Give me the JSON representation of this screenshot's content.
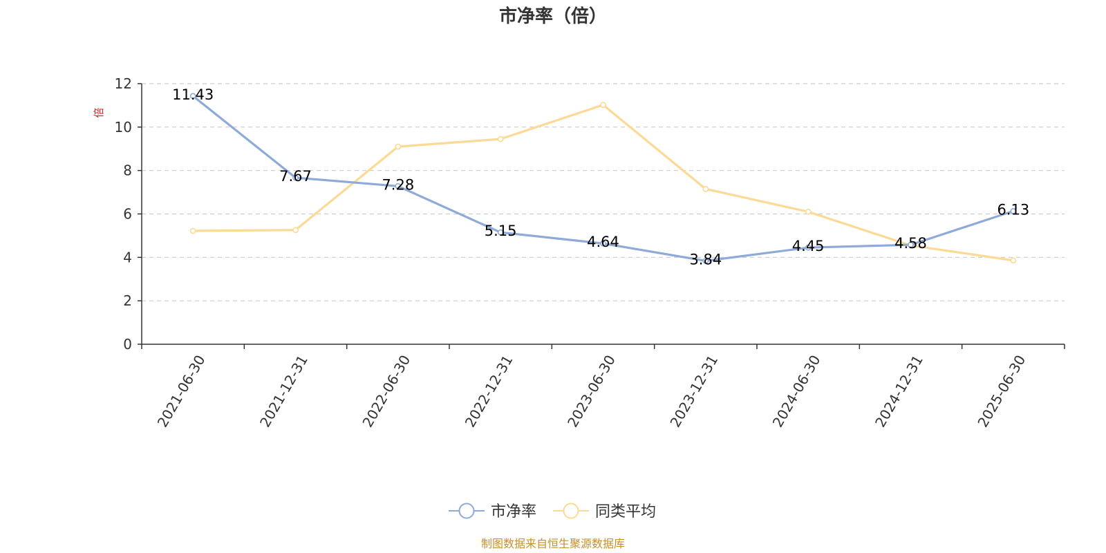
{
  "chart_data": {
    "type": "line",
    "title": "市净率（倍）",
    "ylabel": "倍",
    "xlabel": "",
    "categories": [
      "2021-06-30",
      "2021-12-31",
      "2022-06-30",
      "2022-12-31",
      "2023-06-30",
      "2023-12-31",
      "2024-06-30",
      "2024-12-31",
      "2025-06-30"
    ],
    "ylim": [
      0,
      12
    ],
    "yticks": [
      0,
      2,
      4,
      6,
      8,
      10,
      12
    ],
    "grid": true,
    "legend_position": "bottom-center",
    "series": [
      {
        "name": "市净率",
        "color": "#8eaad8",
        "values": [
          11.43,
          7.67,
          7.28,
          5.15,
          4.64,
          3.84,
          4.45,
          4.58,
          6.13
        ],
        "labels": [
          "11.43",
          "7.67",
          "7.28",
          "5.15",
          "4.64",
          "3.84",
          "4.45",
          "4.58",
          "6.13"
        ]
      },
      {
        "name": "同类平均",
        "color": "#fcd994",
        "values": [
          5.22,
          5.26,
          9.1,
          9.45,
          11.02,
          7.15,
          6.1,
          4.55,
          3.86
        ]
      }
    ]
  },
  "footer": {
    "source": "制图数据来自恒生聚源数据库"
  }
}
